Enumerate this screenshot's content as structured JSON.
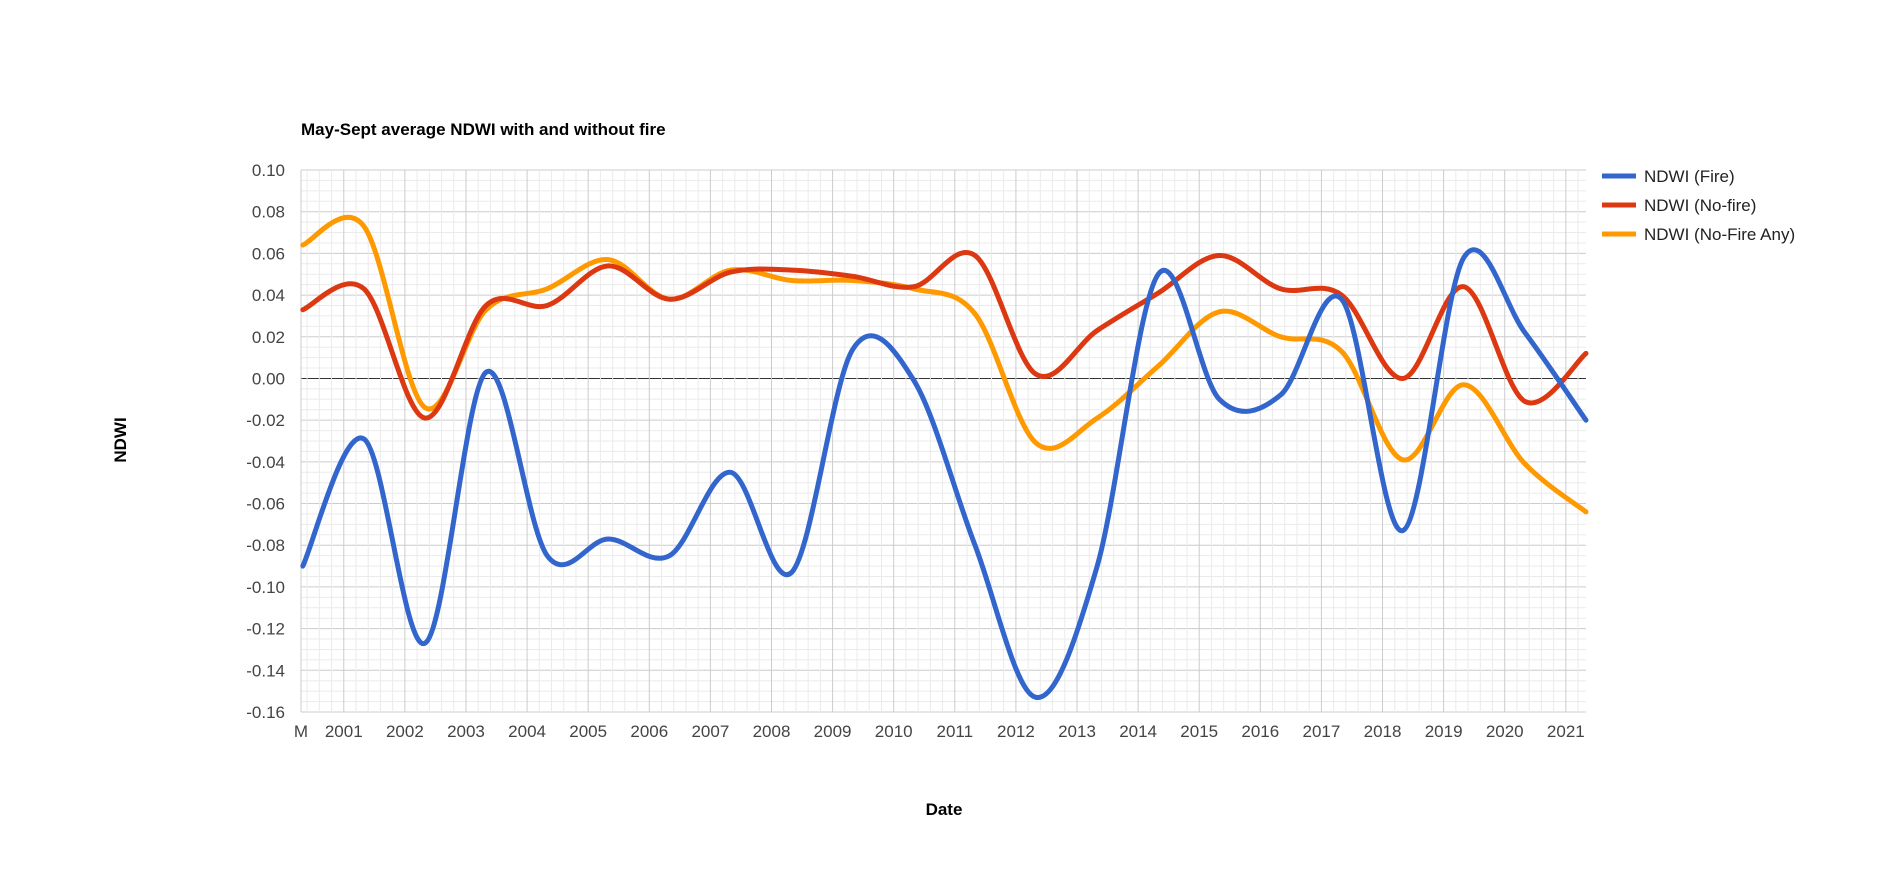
{
  "chart_data": {
    "type": "line",
    "title": "May-Sept average NDWI with and without fire",
    "xlabel": "Date",
    "ylabel": "NDWI",
    "x_ticks": [
      "M",
      "2001",
      "2002",
      "2003",
      "2004",
      "2005",
      "2006",
      "2007",
      "2008",
      "2009",
      "2010",
      "2011",
      "2012",
      "2013",
      "2014",
      "2015",
      "2016",
      "2017",
      "2018",
      "2019",
      "2020",
      "2021"
    ],
    "y_ticks": [
      "0.10",
      "0.08",
      "0.06",
      "0.04",
      "0.02",
      "0.00",
      "-0.02",
      "-0.04",
      "-0.06",
      "-0.08",
      "-0.10",
      "-0.12",
      "-0.14",
      "-0.16"
    ],
    "ylim": [
      -0.16,
      0.1
    ],
    "xlim": [
      2000.3,
      2021.33
    ],
    "grid": true,
    "legend_position": "right",
    "series": [
      {
        "name": "NDWI (Fire)",
        "color": "#3366cc",
        "x": [
          2000.33,
          2001.33,
          2002.33,
          2003.33,
          2004.33,
          2005.33,
          2006.33,
          2007.33,
          2008.33,
          2009.33,
          2010.33,
          2011.33,
          2012.33,
          2013.33,
          2014.33,
          2015.33,
          2016.33,
          2017.33,
          2018.33,
          2019.33,
          2020.33,
          2021.33
        ],
        "values": [
          -0.09,
          -0.029,
          -0.127,
          0.003,
          -0.085,
          -0.077,
          -0.085,
          -0.045,
          -0.093,
          0.014,
          -0.001,
          -0.08,
          -0.153,
          -0.09,
          0.05,
          -0.01,
          -0.008,
          0.038,
          -0.073,
          0.058,
          0.022,
          -0.02
        ]
      },
      {
        "name": "NDWI (No-fire)",
        "color": "#dc3912",
        "x": [
          2000.33,
          2001.33,
          2002.33,
          2003.33,
          2004.33,
          2005.33,
          2006.33,
          2007.33,
          2008.33,
          2009.33,
          2010.33,
          2011.33,
          2012.33,
          2013.33,
          2014.33,
          2015.33,
          2016.33,
          2017.33,
          2018.33,
          2019.33,
          2020.33,
          2021.33
        ],
        "values": [
          0.033,
          0.043,
          -0.019,
          0.035,
          0.035,
          0.054,
          0.038,
          0.051,
          0.052,
          0.049,
          0.044,
          0.059,
          0.002,
          0.023,
          0.041,
          0.059,
          0.043,
          0.04,
          0.0,
          0.044,
          -0.011,
          0.012
        ]
      },
      {
        "name": "NDWI (No-Fire Any)",
        "color": "#ff9900",
        "x": [
          2000.33,
          2001.33,
          2002.33,
          2003.33,
          2004.33,
          2005.33,
          2006.33,
          2007.33,
          2008.33,
          2009.33,
          2010.33,
          2011.33,
          2012.33,
          2013.33,
          2014.33,
          2015.33,
          2016.33,
          2017.33,
          2018.33,
          2019.33,
          2020.33,
          2021.33
        ],
        "values": [
          0.064,
          0.073,
          -0.014,
          0.033,
          0.043,
          0.057,
          0.038,
          0.052,
          0.047,
          0.047,
          0.043,
          0.031,
          -0.031,
          -0.019,
          0.006,
          0.032,
          0.02,
          0.013,
          -0.039,
          -0.003,
          -0.041,
          -0.064
        ]
      }
    ]
  }
}
